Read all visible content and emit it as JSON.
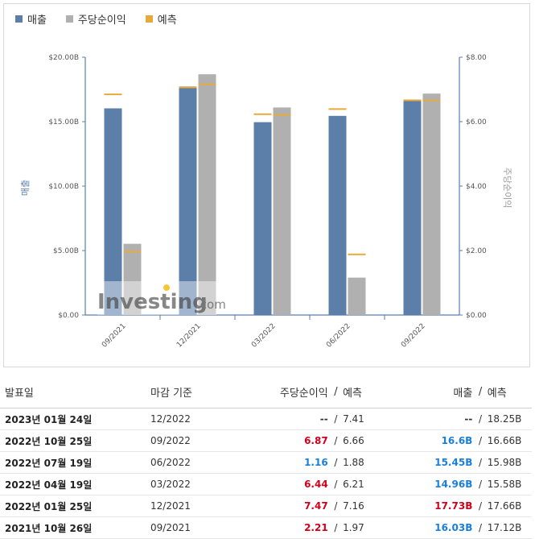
{
  "legend": {
    "revenue_label": "매출",
    "eps_label": "주당순이익",
    "forecast_label": "예측"
  },
  "colors": {
    "revenue": "#5b7fa9",
    "eps": "#b0b0b0",
    "forecast": "#e8a93a"
  },
  "watermark": "Investing.com",
  "chart_data": {
    "type": "bar",
    "categories": [
      "09/2021",
      "12/2021",
      "03/2022",
      "06/2022",
      "09/2022"
    ],
    "series": [
      {
        "name": "매출",
        "axis": "left",
        "values": [
          16.03,
          17.73,
          14.96,
          15.45,
          16.6
        ]
      },
      {
        "name": "주당순이익",
        "axis": "right",
        "values": [
          2.21,
          7.47,
          6.44,
          1.16,
          6.87
        ]
      }
    ],
    "forecasts": {
      "revenue": [
        17.12,
        17.66,
        15.58,
        15.98,
        16.66
      ],
      "eps": [
        1.97,
        7.16,
        6.21,
        1.88,
        6.66
      ]
    },
    "left_axis": {
      "label": "매출",
      "ticks": [
        "$0.00",
        "$5.00B",
        "$10.00B",
        "$15.00B",
        "$20.00B"
      ],
      "range": [
        0,
        20
      ]
    },
    "right_axis": {
      "label": "주당순이익",
      "ticks": [
        "$0.00",
        "$2.00",
        "$4.00",
        "$6.00",
        "$8.00"
      ],
      "range": [
        0,
        8
      ]
    }
  },
  "table": {
    "headers": {
      "date": "발표일",
      "period": "마감 기준",
      "eps": "주당순이익",
      "eps_sep": "/",
      "eps_forecast": "예측",
      "revenue": "매출",
      "revenue_sep": "/",
      "revenue_forecast": "예측"
    },
    "rows": [
      {
        "date": "2023년 01월 24일",
        "period": "12/2022",
        "eps": "--",
        "eps_forecast": "7.41",
        "revenue": "--",
        "revenue_forecast": "18.25B",
        "eps_class": "neutral",
        "rev_class": "neutral"
      },
      {
        "date": "2022년 10월 25일",
        "period": "09/2022",
        "eps": "6.87",
        "eps_forecast": "6.66",
        "revenue": "16.6B",
        "revenue_forecast": "16.66B",
        "eps_class": "pos",
        "rev_class": "neg"
      },
      {
        "date": "2022년 07월 19일",
        "period": "06/2022",
        "eps": "1.16",
        "eps_forecast": "1.88",
        "revenue": "15.45B",
        "revenue_forecast": "15.98B",
        "eps_class": "neg",
        "rev_class": "neg"
      },
      {
        "date": "2022년 04월 19일",
        "period": "03/2022",
        "eps": "6.44",
        "eps_forecast": "6.21",
        "revenue": "14.96B",
        "revenue_forecast": "15.58B",
        "eps_class": "pos",
        "rev_class": "neg"
      },
      {
        "date": "2022년 01월 25일",
        "period": "12/2021",
        "eps": "7.47",
        "eps_forecast": "7.16",
        "revenue": "17.73B",
        "revenue_forecast": "17.66B",
        "eps_class": "pos",
        "rev_class": "pos"
      },
      {
        "date": "2021년 10월 26일",
        "period": "09/2021",
        "eps": "2.21",
        "eps_forecast": "1.97",
        "revenue": "16.03B",
        "revenue_forecast": "17.12B",
        "eps_class": "pos",
        "rev_class": "neg"
      }
    ]
  }
}
